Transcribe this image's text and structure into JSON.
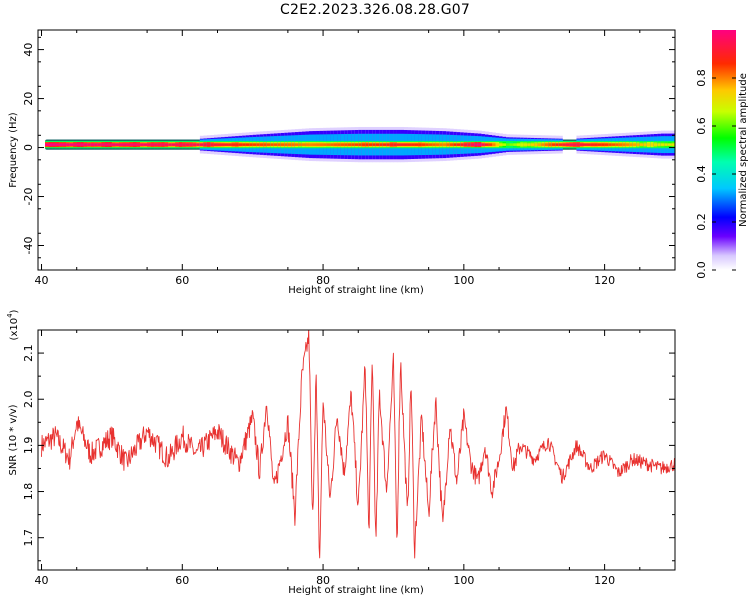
{
  "title": "C2E2.2023.326.08.28.G07",
  "colors": {
    "snr_line": "#e8312f",
    "axis": "#000000",
    "background": "#ffffff"
  },
  "chart_data": [
    {
      "type": "heatmap",
      "xlabel": "Height of straight line (km)",
      "ylabel": "Frequency (Hz)",
      "xlim": [
        39.5,
        130
      ],
      "ylim": [
        -50,
        48
      ],
      "xticks": [
        "40",
        "60",
        "80",
        "100",
        "120"
      ],
      "yticks": [
        "40",
        "20",
        "0",
        "-20",
        "-40"
      ],
      "colorbar": {
        "label": "Normalized spectral amplitude",
        "range": [
          0,
          1
        ],
        "ticks": [
          "0.0",
          "0.2",
          "0.4",
          "0.6",
          "0.8"
        ]
      },
      "band": {
        "center_frequency_hz": 1.2,
        "core_halfwidth_hz": 1.5,
        "x_range": [
          40.5,
          130
        ],
        "note_points": [
          {
            "x": 42,
            "spread_hz": 0.5,
            "peak": 1.0
          },
          {
            "x": 62,
            "spread_hz": 0.8,
            "peak": 0.95
          },
          {
            "x": 70,
            "spread_hz": 2.5,
            "peak": 0.85
          },
          {
            "x": 78,
            "spread_hz": 4.0,
            "peak": 0.8
          },
          {
            "x": 85,
            "spread_hz": 4.5,
            "peak": 0.85
          },
          {
            "x": 91,
            "spread_hz": 4.5,
            "peak": 0.9
          },
          {
            "x": 97,
            "spread_hz": 4.0,
            "peak": 0.8
          },
          {
            "x": 102,
            "spread_hz": 3.0,
            "peak": 1.0
          },
          {
            "x": 106,
            "spread_hz": 1.5,
            "peak": 0.6
          },
          {
            "x": 115,
            "spread_hz": 0.8,
            "peak": 0.95
          },
          {
            "x": 128,
            "spread_hz": 3.0,
            "peak": 0.7
          }
        ]
      }
    },
    {
      "type": "line",
      "xlabel": "Height of straight line (km)",
      "ylabel": "SNR (10 * v/v)",
      "yexponent_label": "(x10",
      "yexponent_power": "4",
      "yexponent_close": ")",
      "xlim": [
        39.5,
        130
      ],
      "ylim": [
        1.63,
        2.15
      ],
      "xticks": [
        "40",
        "60",
        "80",
        "100",
        "120"
      ],
      "yticks": [
        "1.7",
        "1.8",
        "1.9",
        "2.0",
        "2.1"
      ],
      "series": [
        {
          "color": "#e8312f",
          "x": [
            40,
            42,
            44,
            45,
            47,
            50,
            52,
            55,
            58,
            60,
            62,
            65,
            68,
            70,
            71,
            72,
            73,
            75,
            76,
            77,
            78,
            78.5,
            79,
            79.5,
            80,
            81,
            82,
            83,
            84,
            85,
            86,
            86.5,
            87,
            87.5,
            88,
            89,
            90,
            90.5,
            91,
            92,
            92.5,
            93,
            94,
            95,
            96,
            97,
            98,
            99,
            100,
            101,
            102,
            103,
            104,
            105,
            106,
            107,
            108,
            110,
            112,
            114,
            116,
            118,
            120,
            122,
            124,
            126,
            128,
            130
          ],
          "y": [
            1.9,
            1.92,
            1.87,
            1.95,
            1.88,
            1.92,
            1.86,
            1.93,
            1.87,
            1.92,
            1.88,
            1.93,
            1.86,
            1.96,
            1.84,
            2.0,
            1.8,
            1.95,
            1.75,
            2.05,
            2.14,
            1.72,
            2.06,
            1.64,
            2.0,
            1.78,
            1.97,
            1.84,
            2.01,
            1.76,
            2.08,
            1.7,
            2.1,
            1.67,
            2.02,
            1.8,
            2.08,
            1.68,
            2.09,
            1.74,
            2.05,
            1.67,
            1.96,
            1.75,
            2.0,
            1.72,
            1.95,
            1.82,
            1.96,
            1.86,
            1.82,
            1.9,
            1.8,
            1.87,
            1.98,
            1.85,
            1.9,
            1.87,
            1.91,
            1.83,
            1.9,
            1.85,
            1.88,
            1.84,
            1.87,
            1.86,
            1.85,
            1.86
          ]
        }
      ]
    }
  ]
}
